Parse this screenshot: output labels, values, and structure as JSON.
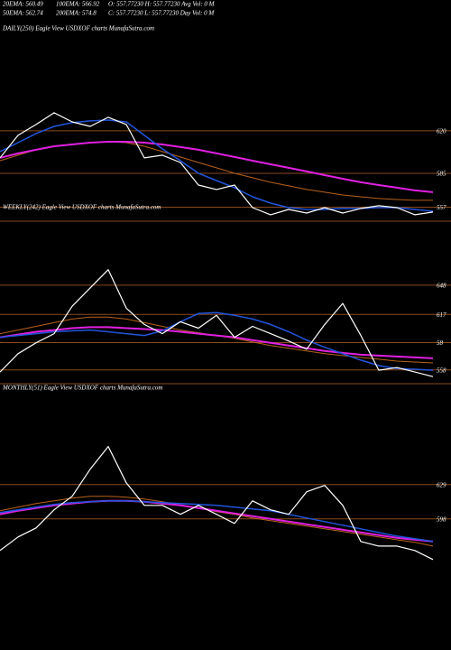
{
  "header": [
    [
      "20EMA: 560.49",
      "100EMA: 566.92",
      "O: 557.77230 H: 557.77230 Avg Vol: 0  M"
    ],
    [
      "50EMA: 562.74",
      "200EMA: 574.8",
      "C: 557.77230 L: 557.77230 Day Vol: 0  M"
    ]
  ],
  "chart_data": [
    {
      "type": "line",
      "title": "DAILY(250) Eagle  View  USDXOF charts MunafaSutra.com",
      "ylim": [
        545.5,
        713
      ],
      "yticks": [
        620,
        585,
        557
      ],
      "grid": true,
      "series": [
        {
          "color": "#b8621b",
          "width": 1,
          "values": [
            595.4,
            599.9,
            604.4,
            607.3,
            608.8,
            610.3,
            611.0,
            610.3,
            607.3,
            602.9,
            598.4,
            593.9,
            589.5,
            585.0,
            581.3,
            577.6,
            574.6,
            571.6,
            569.4,
            567.1,
            565.6,
            564.2,
            563.4,
            562.7,
            562.7
          ]
        },
        {
          "color": "#e020e0",
          "width": 2,
          "values": [
            597.7,
            601.4,
            604.4,
            607.3,
            608.8,
            610.3,
            611.0,
            611.0,
            610.3,
            608.8,
            606.6,
            604.4,
            601.4,
            598.4,
            595.4,
            592.4,
            589.5,
            586.5,
            583.5,
            580.5,
            577.6,
            575.3,
            573.1,
            570.9,
            569.4
          ]
        },
        {
          "color": "#2255dd",
          "width": 1.5,
          "values": [
            602.9,
            610.3,
            617.8,
            623.7,
            626.7,
            628.2,
            628.9,
            627.4,
            616.3,
            605.1,
            595.4,
            585.0,
            579.0,
            573.1,
            565.6,
            560.4,
            556.7,
            555.2,
            555.2,
            556.0,
            556.0,
            556.7,
            556.7,
            555.2,
            553.7
          ]
        },
        {
          "color": "#ffffff",
          "width": 1.2,
          "values": [
            597.7,
            616.3,
            625.2,
            634.9,
            627.4,
            623.7,
            631.2,
            625.2,
            597.7,
            599.9,
            593.9,
            575.3,
            571.6,
            575.3,
            556.7,
            550.8,
            555.2,
            552.2,
            556.7,
            552.2,
            556.0,
            558.2,
            556.7,
            550.8,
            553.0
          ]
        }
      ]
    },
    {
      "type": "line",
      "title": "WEEKLY(242) Eagle  View  USDXOF charts MunafaSutra.com",
      "ylim": [
        543.4,
        716
      ],
      "yticks": [
        648,
        617,
        {
          "value": 587,
          "label": "58"
        },
        558
      ],
      "grid": true,
      "series": [
        {
          "color": "#b8621b",
          "width": 1,
          "values": [
            596.5,
            600.4,
            604.3,
            608.2,
            612.1,
            614.1,
            614.1,
            612.1,
            608.2,
            604.3,
            600.4,
            597.5,
            594.6,
            591.6,
            587.8,
            583.9,
            581.0,
            578.1,
            575.2,
            573.2,
            571.3,
            569.4,
            567.4,
            566.4,
            565.5
          ]
        },
        {
          "color": "#e020e0",
          "width": 2,
          "values": [
            592.7,
            595.6,
            598.5,
            600.4,
            602.4,
            603.4,
            603.4,
            602.4,
            601.4,
            600.4,
            598.5,
            596.5,
            594.6,
            592.7,
            589.7,
            586.8,
            583.9,
            581.0,
            578.1,
            576.1,
            574.2,
            573.2,
            572.3,
            571.3,
            570.3
          ]
        },
        {
          "color": "#2255dd",
          "width": 1.5,
          "values": [
            592.7,
            594.6,
            596.5,
            598.5,
            599.5,
            600.4,
            598.5,
            596.5,
            594.6,
            599.5,
            609.2,
            617.9,
            618.9,
            616.0,
            612.1,
            606.3,
            598.5,
            589.7,
            582.0,
            575.2,
            568.4,
            562.6,
            559.6,
            558.7,
            557.7
          ]
        },
        {
          "color": "#ffffff",
          "width": 1.2,
          "values": [
            555.8,
            575.2,
            586.8,
            596.5,
            625.7,
            645.1,
            664.5,
            623.7,
            606.3,
            596.5,
            609.2,
            602.4,
            616.0,
            592.7,
            604.3,
            596.5,
            588.8,
            580.0,
            606.3,
            628.6,
            594.6,
            557.7,
            560.6,
            555.8,
            550.9
          ]
        }
      ]
    },
    {
      "type": "line",
      "title": "MONTHLY(51) Eagle  View  USDXOF charts MunafaSutra.com",
      "ylim": [
        496,
        720
      ],
      "yticks": [
        629,
        598
      ],
      "grid": true,
      "series": [
        {
          "color": "#b8621b",
          "width": 1,
          "values": [
            605.3,
            608.6,
            611.9,
            614.3,
            616.8,
            618.4,
            618.4,
            617.6,
            616.0,
            613.5,
            610.2,
            607.8,
            604.5,
            602.1,
            598.8,
            596.4,
            593.9,
            591.5,
            589.0,
            586.6,
            584.1,
            581.7,
            579.2,
            576.8,
            573.5
          ]
        },
        {
          "color": "#e020e0",
          "width": 2,
          "values": [
            602.1,
            605.3,
            607.8,
            610.2,
            611.9,
            613.5,
            614.3,
            614.3,
            613.5,
            611.9,
            610.2,
            607.8,
            605.3,
            602.9,
            600.5,
            598.0,
            595.5,
            593.1,
            590.7,
            588.2,
            585.8,
            583.3,
            580.9,
            579.2,
            577.6
          ]
        },
        {
          "color": "#2255dd",
          "width": 1.5,
          "values": [
            603.7,
            606.2,
            608.6,
            611.1,
            612.7,
            613.5,
            614.3,
            614.3,
            613.5,
            612.7,
            611.9,
            611.1,
            610.2,
            608.6,
            607.0,
            605.3,
            602.1,
            598.8,
            595.5,
            592.3,
            589.0,
            585.8,
            582.5,
            580.1,
            577.6
          ]
        },
        {
          "color": "#ffffff",
          "width": 1.2,
          "values": [
            569.5,
            581.7,
            589.8,
            606.2,
            618.4,
            642.9,
            663.3,
            630.6,
            610.2,
            610.2,
            602.1,
            610.2,
            602.1,
            593.9,
            614.3,
            606.2,
            602.1,
            622.5,
            628.2,
            610.2,
            577.6,
            573.5,
            573.5,
            569.5,
            561.3
          ]
        }
      ]
    }
  ]
}
